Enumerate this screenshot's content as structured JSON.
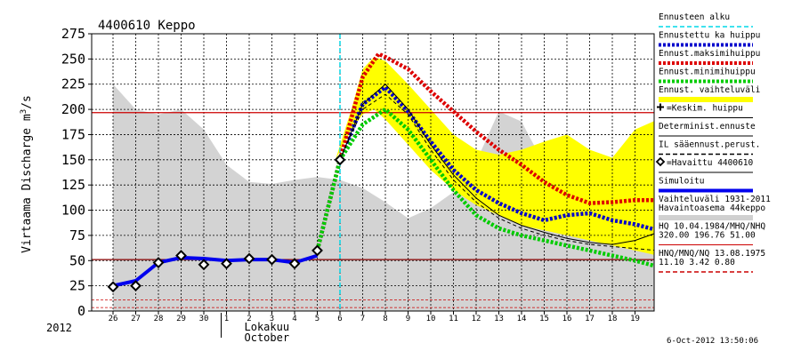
{
  "chart_data": {
    "type": "line",
    "title": "4400610 Keppo",
    "ylabel_main": "Virtaama Discharge m",
    "ylabel_sup": "3",
    "ylabel_tail": "/s",
    "ylim": [
      0,
      275
    ],
    "yticks": [
      0,
      25,
      50,
      75,
      100,
      125,
      150,
      175,
      200,
      225,
      250,
      275
    ],
    "xlim": [
      0,
      24.5
    ],
    "x_tick_labels": [
      "26",
      "27",
      "28",
      "29",
      "30",
      "1",
      "2",
      "3",
      "4",
      "5",
      "6",
      "7",
      "8",
      "9",
      "10",
      "11",
      "12",
      "13",
      "14",
      "15",
      "16",
      "17",
      "18",
      "19"
    ],
    "year_label": "2012",
    "month_label_fi": "Lokakuu",
    "month_label_en": "October",
    "month_start_index": 5,
    "forecast_start_x": 10.0,
    "timestamp": "6-Oct-2012 13:50:06",
    "grid": true,
    "legend_position": "right",
    "hlines": [
      {
        "value": 196.76,
        "color": "#cc0000",
        "style": "solid"
      },
      {
        "value": 51.0,
        "color": "#880000",
        "style": "solid"
      },
      {
        "value": 11.1,
        "color": "#cc0000",
        "style": "dashed"
      },
      {
        "value": 3.42,
        "color": "#cc0000",
        "style": "dashed"
      }
    ],
    "historical_range": {
      "x": [
        0,
        1,
        2,
        3,
        4,
        5,
        6,
        7,
        8,
        9,
        10,
        11,
        12,
        13,
        14,
        15,
        16,
        17,
        18,
        19,
        20,
        21,
        22,
        23,
        24.5
      ],
      "upper": [
        225,
        200,
        195,
        200,
        180,
        145,
        128,
        126,
        130,
        133,
        130,
        122,
        108,
        92,
        102,
        118,
        148,
        198,
        188,
        145,
        150,
        118,
        112,
        100,
        50
      ],
      "lower": [
        0,
        0,
        0,
        0,
        0,
        0,
        0,
        0,
        0,
        0,
        0,
        0,
        0,
        0,
        0,
        0,
        0,
        0,
        0,
        0,
        0,
        0,
        0,
        0,
        0
      ]
    },
    "forecast_range": {
      "x": [
        9.8,
        10.5,
        11,
        11.5,
        12,
        13,
        14,
        15,
        16,
        17,
        18,
        19,
        20,
        21,
        22,
        23,
        24,
        24.5
      ],
      "upper": [
        150,
        200,
        240,
        252,
        248,
        225,
        200,
        175,
        160,
        155,
        160,
        168,
        175,
        160,
        152,
        180,
        190,
        195
      ],
      "lower": [
        150,
        180,
        195,
        200,
        190,
        165,
        140,
        120,
        105,
        95,
        85,
        80,
        75,
        70,
        65,
        60,
        55,
        50
      ]
    },
    "series": [
      {
        "name": "Ennustettu ka huippu",
        "color": "#0000cc",
        "style": "dotted-thick",
        "x": [
          9,
          10,
          11,
          12,
          13,
          14,
          15,
          16,
          17,
          18,
          19,
          20,
          21,
          22,
          23,
          24,
          24.5
        ],
        "y": [
          60,
          150,
          205,
          222,
          198,
          168,
          140,
          120,
          107,
          97,
          90,
          95,
          97,
          90,
          86,
          80,
          75
        ]
      },
      {
        "name": "Ennust.maksimihuippu",
        "color": "#dd0000",
        "style": "dotted-thick",
        "x": [
          9,
          10,
          11,
          11.7,
          12,
          13,
          14,
          15,
          16,
          17,
          18,
          19,
          20,
          21,
          22,
          23,
          24,
          24.5
        ],
        "y": [
          60,
          150,
          232,
          255,
          252,
          240,
          218,
          198,
          178,
          160,
          145,
          128,
          115,
          107,
          108,
          110,
          110,
          110
        ]
      },
      {
        "name": "Ennust.minimihuippu",
        "color": "#00cc00",
        "style": "dotted-thick",
        "x": [
          9,
          10,
          11,
          12,
          13,
          14,
          15,
          16,
          17,
          18,
          19,
          20,
          21,
          22,
          23,
          24,
          24.5
        ],
        "y": [
          60,
          150,
          185,
          200,
          180,
          150,
          120,
          95,
          82,
          75,
          70,
          65,
          60,
          55,
          50,
          44,
          40
        ]
      },
      {
        "name": "Determinist.ennuste",
        "color": "#000000",
        "style": "solid-thin",
        "x": [
          10,
          11,
          12,
          13,
          14,
          15,
          16,
          17,
          18,
          19,
          20,
          21,
          22,
          23,
          24,
          24.5
        ],
        "y": [
          150,
          205,
          225,
          200,
          165,
          135,
          112,
          95,
          85,
          78,
          72,
          68,
          66,
          70,
          78,
          82
        ]
      },
      {
        "name": "IL sääennust.perust.",
        "color": "#000000",
        "style": "dashed-thin",
        "x": [
          10,
          11,
          12,
          13,
          14,
          15,
          16,
          17,
          18,
          19,
          20,
          21,
          22,
          23,
          24,
          24.5
        ],
        "y": [
          150,
          200,
          215,
          195,
          160,
          130,
          108,
          92,
          82,
          75,
          70,
          66,
          64,
          62,
          60,
          58
        ]
      },
      {
        "name": "Simuloitu",
        "color": "#0000ee",
        "style": "solid-thick",
        "x": [
          0,
          1,
          2,
          3,
          4,
          5,
          6,
          7,
          8,
          9
        ],
        "y": [
          25,
          30,
          48,
          53,
          52,
          50,
          51,
          51,
          48,
          55
        ]
      }
    ],
    "observed": {
      "name": "=Havaittu 4400610",
      "x": [
        0,
        1,
        2,
        3,
        4,
        5,
        6,
        7,
        8,
        9,
        10
      ],
      "y": [
        24,
        25,
        48,
        55,
        46,
        47,
        52,
        51,
        47,
        60,
        150
      ]
    },
    "legend": [
      {
        "label": "Ennusteen alku",
        "kind": "line",
        "color": "#00d8e8",
        "style": "dashed"
      },
      {
        "label": "Ennustettu ka huippu",
        "kind": "line",
        "color": "#0000cc",
        "style": "dotted"
      },
      {
        "label": "Ennust.maksimihuippu",
        "kind": "line",
        "color": "#dd0000",
        "style": "dotted"
      },
      {
        "label": "Ennust.minimihuippu",
        "kind": "line",
        "color": "#00cc00",
        "style": "dotted"
      },
      {
        "label": "Ennust. vaihteluväli",
        "kind": "band",
        "color": "#ffff00",
        "style": "solid"
      },
      {
        "label": "=Keskim. huippu",
        "kind": "marker-plus",
        "color": "#000000",
        "style": "none"
      },
      {
        "label": "Determinist.ennuste",
        "kind": "line",
        "color": "#000000",
        "style": "solid"
      },
      {
        "label": "IL sääennust.perust.",
        "kind": "line",
        "color": "#000000",
        "style": "dashed"
      },
      {
        "label": "=Havaittu 4400610",
        "kind": "marker-diamond",
        "color": "#000000",
        "style": "none"
      },
      {
        "label": "Simuloitu",
        "kind": "line",
        "color": "#0000ee",
        "style": "thick"
      },
      {
        "label": "Vaihteluväli 1931-2011",
        "kind": "text",
        "color": "#000000",
        "style": "none"
      },
      {
        "label": "Havaintoasema 44keppo",
        "kind": "band",
        "color": "#d0d0d0",
        "style": "solid"
      },
      {
        "label": "HQ 10.04.1984/MHQ/NHQ",
        "kind": "text",
        "color": "#000000",
        "style": "none"
      },
      {
        "label": "320.00 196.76 51.00",
        "kind": "line",
        "color": "#cc0000",
        "style": "solid"
      },
      {
        "label": "HNQ/MNQ/NQ 13.08.1975",
        "kind": "text",
        "color": "#000000",
        "style": "none"
      },
      {
        "label": "11.10 3.42 0.80",
        "kind": "line",
        "color": "#cc0000",
        "style": "dashed"
      }
    ]
  }
}
